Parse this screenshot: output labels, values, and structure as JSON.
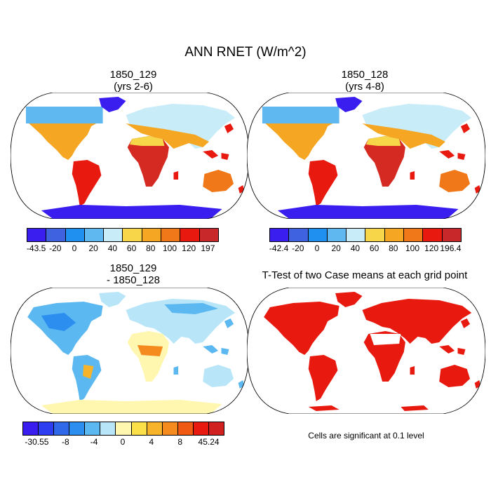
{
  "title": "ANN RNET (W/m^2)",
  "panels": {
    "p1": {
      "title_line1": "1850_129",
      "title_line2": "(yrs 2-6)"
    },
    "p2": {
      "title_line1": "1850_128",
      "title_line2": "(yrs 4-8)"
    },
    "p3": {
      "title_line1": "1850_129",
      "title_line2": "- 1850_128"
    },
    "p4": {
      "title_line1": "T-Test of two Case means at each grid point",
      "note": "Cells are significant at 0.1 level"
    }
  },
  "colorbars": {
    "cb1": {
      "labels": [
        "-43.5",
        "-20",
        "0",
        "20",
        "40",
        "60",
        "80",
        "100",
        "120",
        "197"
      ],
      "colors": [
        "#3a1ef0",
        "#3f63e0",
        "#1f8ff0",
        "#5fb9f0",
        "#c8ecf8",
        "#f7d64a",
        "#f5a622",
        "#f07818",
        "#e81a10",
        "#c8282a"
      ]
    },
    "cb2": {
      "labels": [
        "-42.4",
        "-20",
        "0",
        "20",
        "40",
        "60",
        "80",
        "100",
        "120",
        "196.4"
      ],
      "colors": [
        "#3a1ef0",
        "#3f63e0",
        "#1f8ff0",
        "#5fb9f0",
        "#c8ecf8",
        "#f7d64a",
        "#f5a622",
        "#f07818",
        "#e81a10",
        "#c8282a"
      ]
    },
    "cb3": {
      "labels": [
        "-30.55",
        "-8",
        "-4",
        "0",
        "4",
        "8",
        "45.24"
      ],
      "colors": [
        "#3a1ef0",
        "#2c3ef0",
        "#2f68e8",
        "#2c8ff0",
        "#5cb8f0",
        "#b8e6f8",
        "#fff7b0",
        "#fbe04a",
        "#f7b42a",
        "#f58a1e",
        "#f05a12",
        "#e81a10",
        "#d02020"
      ]
    }
  }
}
